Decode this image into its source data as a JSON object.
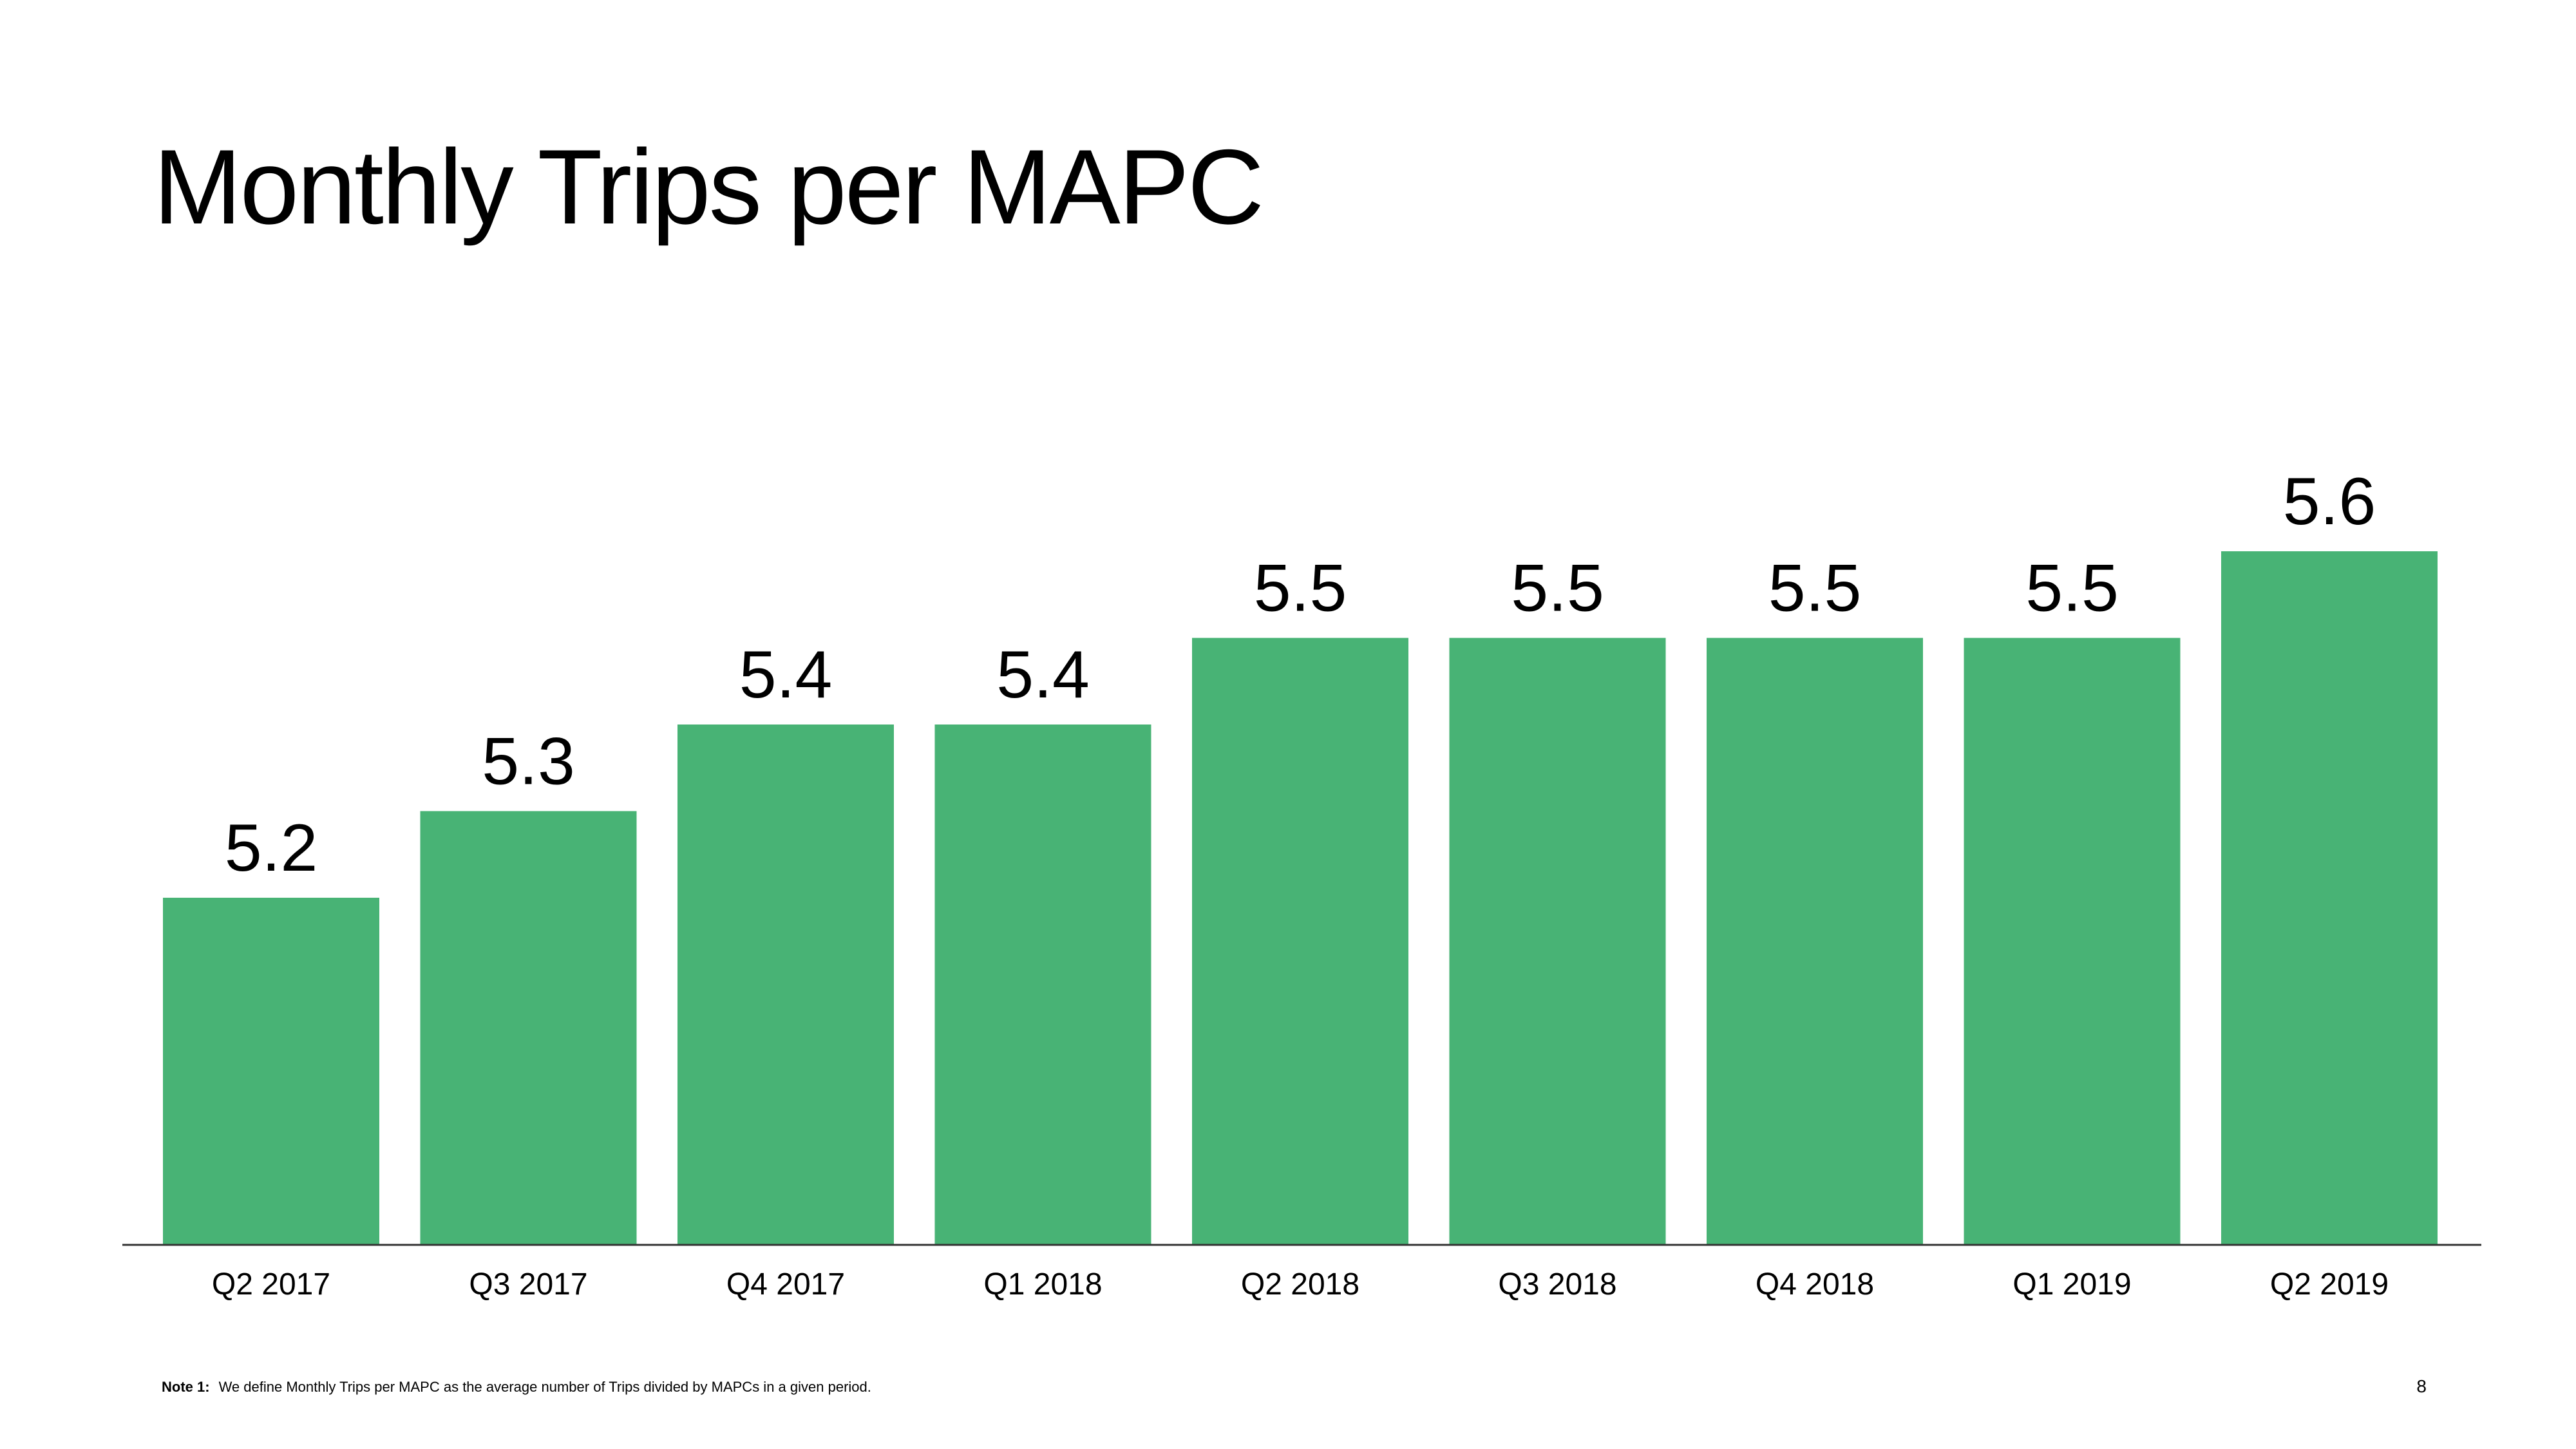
{
  "slide": {
    "title": "Monthly Trips per MAPC",
    "page_number": "8",
    "note": {
      "label": "Note 1:",
      "text": "We define Monthly Trips per MAPC as the average number of Trips divided by MAPCs in a given period."
    }
  },
  "colors": {
    "bar": "#48B375",
    "axis": "#333333",
    "text": "#000000"
  },
  "chart_data": {
    "type": "bar",
    "title": "Monthly Trips per MAPC",
    "categories": [
      "Q2 2017",
      "Q3 2017",
      "Q4 2017",
      "Q1 2018",
      "Q2 2018",
      "Q3 2018",
      "Q4 2018",
      "Q1 2019",
      "Q2 2019"
    ],
    "values": [
      5.2,
      5.3,
      5.4,
      5.4,
      5.5,
      5.5,
      5.5,
      5.5,
      5.6
    ],
    "data_labels": [
      "5.2",
      "5.3",
      "5.4",
      "5.4",
      "5.5",
      "5.5",
      "5.5",
      "5.5",
      "5.6"
    ],
    "xlabel": "",
    "ylabel": "",
    "ylim": [
      4.8,
      5.7
    ],
    "grid": false,
    "legend": "none"
  }
}
